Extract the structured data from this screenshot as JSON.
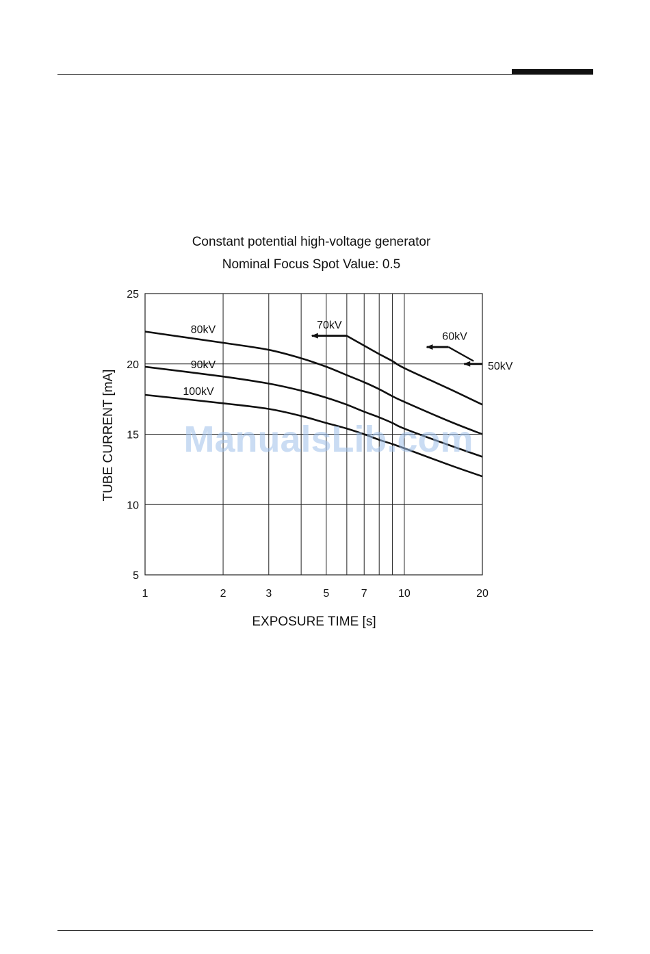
{
  "chart_data": {
    "type": "line",
    "title": "Constant potential high-voltage generator",
    "subtitle": "Nominal Focus Spot Value: 0.5",
    "xlabel": "EXPOSURE TIME  [s]",
    "ylabel": "TUBE CURRENT  [mA]",
    "x_scale": "log",
    "xlim": [
      1,
      20
    ],
    "ylim": [
      5,
      25
    ],
    "x_ticks": [
      1,
      2,
      3,
      5,
      7,
      10,
      20
    ],
    "x_gridlines": [
      1,
      2,
      3,
      4,
      5,
      6,
      7,
      8,
      9,
      10,
      20
    ],
    "y_ticks": [
      5,
      10,
      15,
      20,
      25
    ],
    "grid": true,
    "series": [
      {
        "name": "80kV",
        "x": [
          1,
          2,
          3,
          4,
          5,
          6,
          7,
          8,
          9,
          10,
          15,
          20
        ],
        "y": [
          22.3,
          21.5,
          21.0,
          20.4,
          19.8,
          19.2,
          18.7,
          18.2,
          17.7,
          17.3,
          15.9,
          15.0
        ]
      },
      {
        "name": "90kV",
        "x": [
          1,
          2,
          3,
          4,
          5,
          6,
          7,
          8,
          9,
          10,
          15,
          20
        ],
        "y": [
          19.8,
          19.1,
          18.6,
          18.1,
          17.6,
          17.1,
          16.6,
          16.2,
          15.8,
          15.4,
          14.2,
          13.4
        ]
      },
      {
        "name": "100kV",
        "x": [
          1,
          2,
          3,
          4,
          5,
          6,
          7,
          8,
          9,
          10,
          15,
          20
        ],
        "y": [
          17.8,
          17.2,
          16.8,
          16.3,
          15.8,
          15.4,
          15.0,
          14.6,
          14.3,
          14.0,
          12.8,
          12.0
        ]
      },
      {
        "name": "70kV",
        "x": [
          6,
          7,
          8,
          9,
          10,
          15,
          20
        ],
        "y": [
          22.0,
          21.3,
          20.7,
          20.2,
          19.7,
          18.2,
          17.1
        ]
      }
    ],
    "annotations": [
      {
        "text": "80kV",
        "x": 1.5,
        "y": 22.5
      },
      {
        "text": "90kV",
        "x": 1.5,
        "y": 20.0
      },
      {
        "text": "100kV",
        "x": 1.4,
        "y": 18.1
      },
      {
        "text": "70kV",
        "x": 4.6,
        "y": 22.8,
        "arrow_from": [
          6.0,
          22.0
        ],
        "arrow_to": [
          4.4,
          22.0
        ]
      },
      {
        "text": "60kV",
        "x": 14.0,
        "y": 22.0,
        "arrow_from": [
          14.8,
          21.2
        ],
        "arrow_to": [
          12.2,
          21.2
        ]
      },
      {
        "text": "50kV",
        "x": 24.0,
        "y": 19.9,
        "arrow_from": [
          20.0,
          20.0
        ],
        "arrow_to": [
          17.0,
          20.0
        ]
      }
    ],
    "line_color": "#111111",
    "grid_color": "#222222"
  },
  "watermark": "ManualsLib.com"
}
